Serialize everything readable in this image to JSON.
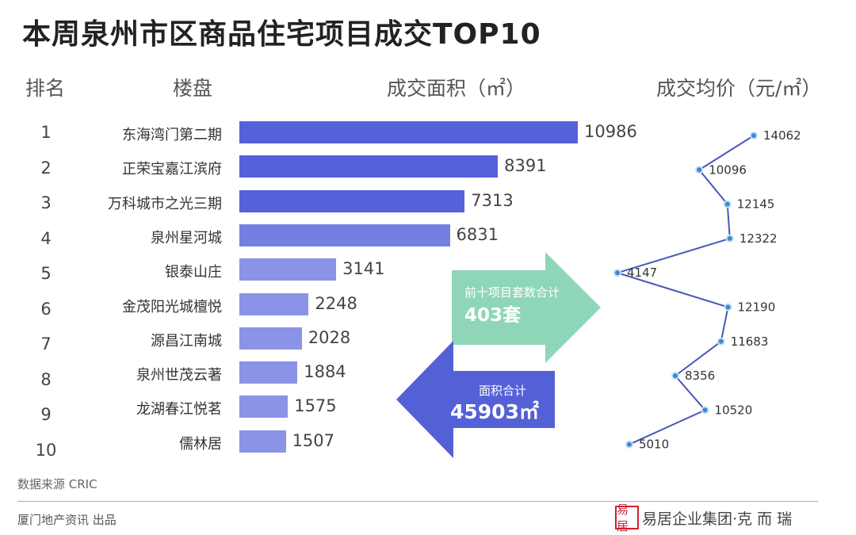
{
  "title": "本周泉州市区商品住宅项目成交TOP10",
  "headers": {
    "rank": "排名",
    "project": "楼盘",
    "area": "成交面积（㎡）",
    "price": "成交均价（元/㎡）"
  },
  "colors": {
    "bar_dark": "#5561d8",
    "bar_mid": "#7380e2",
    "bar_light": "#8a93e6",
    "line": "#4a56b8",
    "point": "#3f86d6",
    "green_arrow": "#8fd6b9",
    "blue_arrow": "#5461d6"
  },
  "chart_data": {
    "type": "bar",
    "categories": [
      "东海湾门第二期",
      "正荣宝嘉江滨府",
      "万科城市之光三期",
      "泉州星河城",
      "银泰山庄",
      "金茂阳光城檀悦",
      "源昌江南城",
      "泉州世茂云著",
      "龙湖春江悦茗",
      "儒林居"
    ],
    "ranks": [
      "1",
      "2",
      "3",
      "4",
      "5",
      "6",
      "7",
      "8",
      "9",
      "10"
    ],
    "series": [
      {
        "name": "成交面积（㎡）",
        "type": "bar",
        "values": [
          10986,
          8391,
          7313,
          6831,
          3141,
          2248,
          2028,
          1884,
          1575,
          1507
        ]
      },
      {
        "name": "成交均价（元/㎡）",
        "type": "line",
        "values": [
          14062,
          10096,
          12145,
          12322,
          4147,
          12190,
          11683,
          8356,
          10520,
          5010
        ]
      }
    ]
  },
  "callouts": {
    "units_label": "前十项目套数合计",
    "units_value": "403套",
    "area_label": "面积合计",
    "area_value": "45903㎡"
  },
  "footer": {
    "source": "数据来源  CRIC",
    "publisher": "厦门地产资讯  出品",
    "brand": "易居企业集团·克 而 瑞",
    "brand_logo": "易居"
  }
}
